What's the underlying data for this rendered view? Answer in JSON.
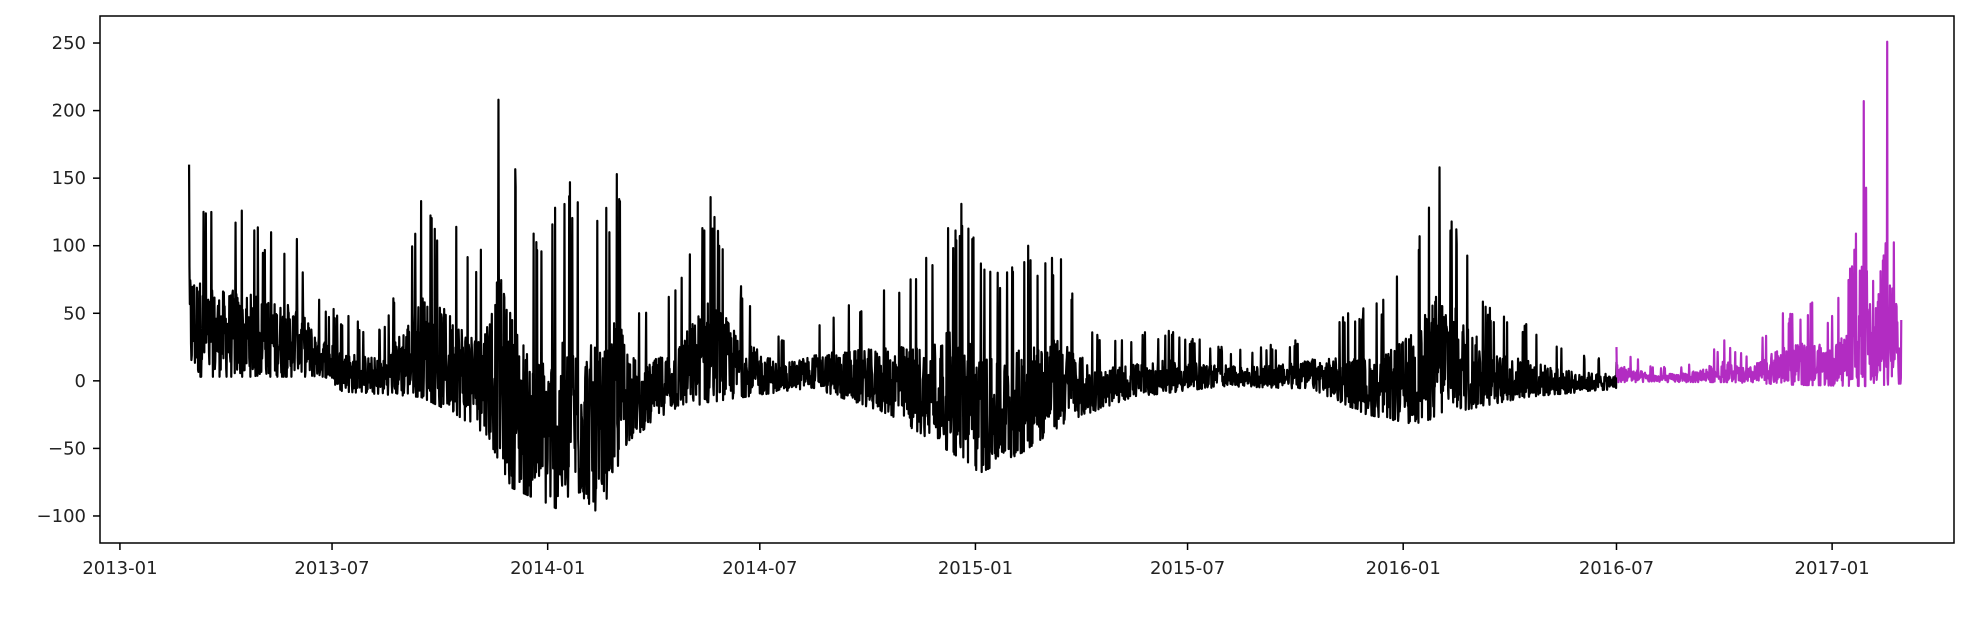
{
  "chart_data": {
    "type": "line",
    "title": "",
    "xlabel": "",
    "ylabel": "",
    "x_axis": {
      "type": "date",
      "range": [
        "2012-12-15",
        "2017-04-15"
      ],
      "ticks": [
        {
          "date": "2013-01-01",
          "label": "2013-01"
        },
        {
          "date": "2013-07-01",
          "label": "2013-07"
        },
        {
          "date": "2014-01-01",
          "label": "2014-01"
        },
        {
          "date": "2014-07-01",
          "label": "2014-07"
        },
        {
          "date": "2015-01-01",
          "label": "2015-01"
        },
        {
          "date": "2015-07-01",
          "label": "2015-07"
        },
        {
          "date": "2016-01-01",
          "label": "2016-01"
        },
        {
          "date": "2016-07-01",
          "label": "2016-07"
        },
        {
          "date": "2017-01-01",
          "label": "2017-01"
        }
      ]
    },
    "y_axis": {
      "range": [
        -120,
        270
      ],
      "ticks": [
        {
          "value": -100,
          "label": "−100"
        },
        {
          "value": -50,
          "label": "−50"
        },
        {
          "value": 0,
          "label": "0"
        },
        {
          "value": 50,
          "label": "50"
        },
        {
          "value": 100,
          "label": "100"
        },
        {
          "value": 150,
          "label": "150"
        },
        {
          "value": 200,
          "label": "200"
        },
        {
          "value": 250,
          "label": "250"
        }
      ]
    },
    "grid": false,
    "legend": "none",
    "series": [
      {
        "color": "#000000",
        "start": "2013-03-01",
        "end": "2016-07-01",
        "upper_envelope": [
          [
            "2013-03-01",
            160
          ],
          [
            "2013-03-20",
            125
          ],
          [
            "2013-04-15",
            126
          ],
          [
            "2013-05-10",
            110
          ],
          [
            "2013-06-01",
            105
          ],
          [
            "2013-06-20",
            60
          ],
          [
            "2013-07-15",
            48
          ],
          [
            "2013-08-15",
            40
          ],
          [
            "2013-09-15",
            133
          ],
          [
            "2013-10-15",
            114
          ],
          [
            "2013-11-05",
            97
          ],
          [
            "2013-11-20",
            208
          ],
          [
            "2013-12-20",
            109
          ],
          [
            "2014-01-20",
            147
          ],
          [
            "2014-02-20",
            128
          ],
          [
            "2014-03-01",
            153
          ],
          [
            "2014-03-20",
            50
          ],
          [
            "2014-04-20",
            67
          ],
          [
            "2014-05-20",
            136
          ],
          [
            "2014-06-15",
            70
          ],
          [
            "2014-07-20",
            30
          ],
          [
            "2014-09-15",
            56
          ],
          [
            "2014-10-15",
            67
          ],
          [
            "2014-11-20",
            91
          ],
          [
            "2014-12-20",
            131
          ],
          [
            "2015-01-20",
            80
          ],
          [
            "2015-02-15",
            100
          ],
          [
            "2015-03-15",
            90
          ],
          [
            "2015-04-15",
            34
          ],
          [
            "2015-06-15",
            37
          ],
          [
            "2015-08-15",
            23
          ],
          [
            "2015-10-01",
            30
          ],
          [
            "2015-11-15",
            50
          ],
          [
            "2015-12-15",
            60
          ],
          [
            "2016-01-15",
            107
          ],
          [
            "2016-02-01",
            158
          ],
          [
            "2016-03-15",
            54
          ],
          [
            "2016-04-15",
            42
          ],
          [
            "2016-05-15",
            24
          ],
          [
            "2016-07-01",
            14
          ]
        ],
        "lower_envelope": [
          [
            "2013-03-01",
            3
          ],
          [
            "2013-06-25",
            3
          ],
          [
            "2013-07-10",
            -8
          ],
          [
            "2013-09-15",
            -12
          ],
          [
            "2013-10-15",
            -25
          ],
          [
            "2013-11-10",
            -40
          ],
          [
            "2013-12-01",
            -79
          ],
          [
            "2014-01-10",
            -95
          ],
          [
            "2014-02-01",
            -87
          ],
          [
            "2014-02-15",
            -100
          ],
          [
            "2014-03-10",
            -45
          ],
          [
            "2014-04-15",
            -22
          ],
          [
            "2014-06-01",
            -14
          ],
          [
            "2014-08-15",
            -5
          ],
          [
            "2014-10-20",
            -25
          ],
          [
            "2014-12-15",
            -55
          ],
          [
            "2015-01-05",
            -68
          ],
          [
            "2015-02-10",
            -53
          ],
          [
            "2015-03-20",
            -30
          ],
          [
            "2015-05-15",
            -12
          ],
          [
            "2015-08-01",
            -4
          ],
          [
            "2015-10-15",
            -6
          ],
          [
            "2015-12-01",
            -25
          ],
          [
            "2016-01-10",
            -32
          ],
          [
            "2016-02-20",
            -22
          ],
          [
            "2016-04-15",
            -12
          ],
          [
            "2016-07-01",
            -6
          ]
        ]
      },
      {
        "color": "#b22cc2",
        "start": "2016-07-01",
        "end": "2017-03-01",
        "upper_envelope": [
          [
            "2016-07-01",
            25
          ],
          [
            "2016-08-01",
            10
          ],
          [
            "2016-09-01",
            12
          ],
          [
            "2016-10-01",
            30
          ],
          [
            "2016-10-20",
            18
          ],
          [
            "2016-11-20",
            50
          ],
          [
            "2016-12-15",
            58
          ],
          [
            "2017-01-01",
            48
          ],
          [
            "2017-01-20",
            97
          ],
          [
            "2017-01-28",
            207
          ],
          [
            "2017-02-05",
            74
          ],
          [
            "2017-02-17",
            251
          ],
          [
            "2017-02-25",
            55
          ],
          [
            "2017-03-01",
            45
          ]
        ],
        "lower_envelope": [
          [
            "2016-07-01",
            -1
          ],
          [
            "2016-10-01",
            -1
          ],
          [
            "2016-12-01",
            -3
          ],
          [
            "2017-02-01",
            -4
          ],
          [
            "2017-03-01",
            -2
          ]
        ]
      }
    ]
  }
}
